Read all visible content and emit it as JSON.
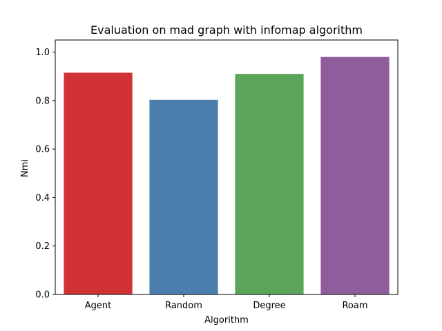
{
  "chart_data": {
    "type": "bar",
    "title": "Evaluation on mad graph with infomap algorithm",
    "xlabel": "Algorithm",
    "ylabel": "Nmi",
    "categories": [
      "Agent",
      "Random",
      "Degree",
      "Roam"
    ],
    "values": [
      0.915,
      0.803,
      0.91,
      0.98
    ],
    "colors": [
      "#d03236",
      "#4a7fad",
      "#5aa55a",
      "#915c9c"
    ],
    "ylim": [
      0,
      1.05
    ],
    "yticks": [
      0.0,
      0.2,
      0.4,
      0.6,
      0.8,
      1.0
    ],
    "ytick_labels": [
      "0.0",
      "0.2",
      "0.4",
      "0.6",
      "0.8",
      "1.0"
    ],
    "grid": false,
    "legend": "none"
  }
}
